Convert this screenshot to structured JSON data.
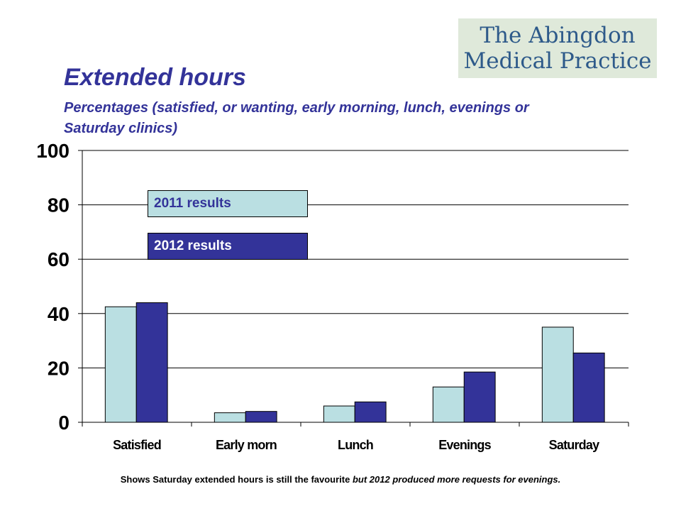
{
  "logo": {
    "line1": "The Abingdon",
    "line2": "Medical Practice"
  },
  "chart_data": {
    "type": "bar",
    "title": "Extended hours",
    "subtitle": "Percentages  (satisfied, or wanting, early morning, lunch, evenings or Saturday clinics)",
    "categories": [
      "Satisfied",
      "Early morn",
      "Lunch",
      "Evenings",
      "Saturday"
    ],
    "series": [
      {
        "name": "2011 results",
        "values": [
          42.5,
          3.5,
          6,
          13,
          35
        ],
        "color": "#badfe2"
      },
      {
        "name": "2012 results",
        "values": [
          44,
          4,
          7.5,
          18.5,
          25.5
        ],
        "color": "#333399"
      }
    ],
    "ylim": [
      0,
      100
    ],
    "yticks": [
      "0",
      "20",
      "40",
      "60",
      "80",
      "100"
    ],
    "grid": true,
    "legend_placement": "top-left"
  },
  "note": {
    "plain": "Shows Saturday extended hours is still the favourite ",
    "italic": "but 2012 produced more requests for evenings."
  }
}
